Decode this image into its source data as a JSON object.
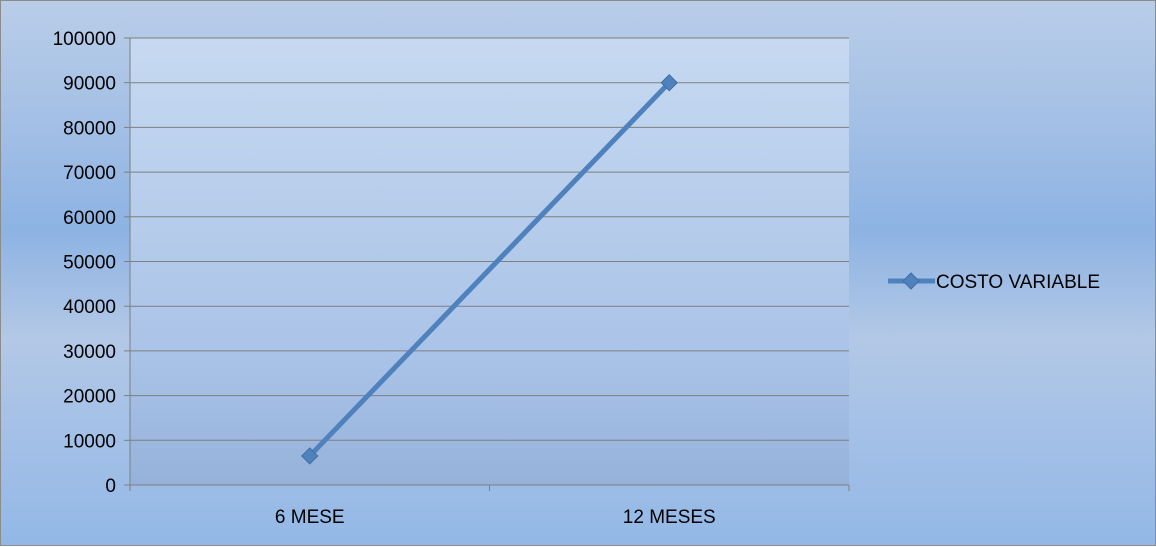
{
  "chart_data": {
    "type": "line",
    "title": "",
    "xlabel": "",
    "ylabel": "",
    "categories": [
      "6 MESE",
      "12 MESES"
    ],
    "ylim": [
      0,
      100000
    ],
    "y_ticks": [
      0,
      10000,
      20000,
      30000,
      40000,
      50000,
      60000,
      70000,
      80000,
      90000,
      100000
    ],
    "grid": true,
    "legend_position": "right",
    "series": [
      {
        "name": "COSTO VARIABLE",
        "values": [
          6500,
          90000
        ],
        "color": "#4f81bd",
        "marker": "diamond"
      }
    ]
  }
}
